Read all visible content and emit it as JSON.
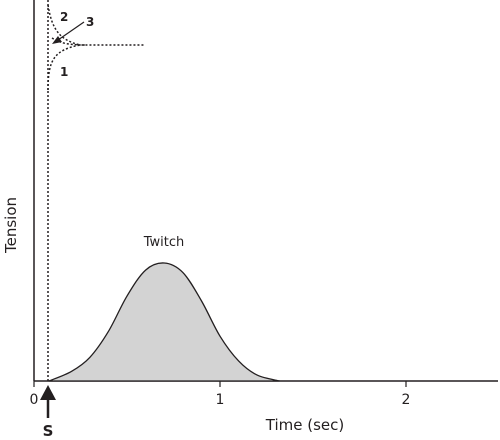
{
  "chart_data": {
    "type": "area",
    "xlabel": "Time (sec)",
    "ylabel": "Tension",
    "x_ticks": [
      "0",
      "1",
      "2"
    ],
    "xlim": [
      0,
      2.5
    ],
    "stimulus_label": "S",
    "stimulus_time": 0.08,
    "series": [
      {
        "name": "Twitch",
        "x": [
          0.08,
          0.2,
          0.3,
          0.4,
          0.5,
          0.6,
          0.7,
          0.8,
          0.9,
          1.0,
          1.1,
          1.2,
          1.32
        ],
        "y": [
          0.0,
          0.08,
          0.2,
          0.42,
          0.72,
          0.94,
          1.0,
          0.92,
          0.68,
          0.38,
          0.17,
          0.05,
          0.0
        ]
      }
    ],
    "tension_traces": [
      {
        "label": "1"
      },
      {
        "label": "2"
      },
      {
        "label": "3"
      }
    ]
  },
  "colors": {
    "fill": "#d3d3d3",
    "ink": "#231f20"
  }
}
